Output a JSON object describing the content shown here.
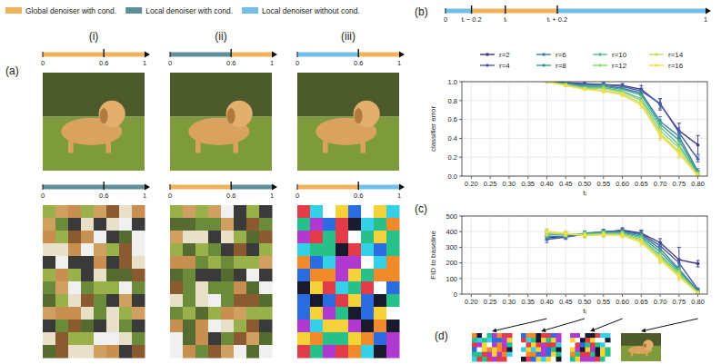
{
  "legend_items": [
    {
      "label": "Global denoiser with cond.",
      "color": "#f2b25c"
    },
    {
      "label": "Local denoiser with cond.",
      "color": "#5f8f98"
    },
    {
      "label": "Local denoiser without cond.",
      "color": "#72bdea"
    }
  ],
  "panel_a": {
    "label": "(a)",
    "timeline_ticks": [
      {
        "value": 0,
        "label": "0"
      },
      {
        "value": 0.6,
        "label": "0.6"
      },
      {
        "value": 1,
        "label": "1"
      }
    ],
    "columns": [
      {
        "label": "(i)",
        "timelines": [
          [
            {
              "start": 0,
              "end": 1,
              "color": "#f2b25c"
            }
          ],
          [
            {
              "start": 0,
              "end": 1,
              "color": "#5f8f98"
            }
          ]
        ]
      },
      {
        "label": "(ii)",
        "timelines": [
          [
            {
              "start": 0,
              "end": 0.6,
              "color": "#5f8f98"
            },
            {
              "start": 0.6,
              "end": 1,
              "color": "#f2b25c"
            }
          ],
          [
            {
              "start": 0,
              "end": 0.6,
              "color": "#f2b25c"
            },
            {
              "start": 0.6,
              "end": 1,
              "color": "#5f8f98"
            }
          ]
        ]
      },
      {
        "label": "(iii)",
        "timelines": [
          [
            {
              "start": 0,
              "end": 0.6,
              "color": "#72bdea"
            },
            {
              "start": 0.6,
              "end": 1,
              "color": "#f2b25c"
            }
          ],
          [
            {
              "start": 0,
              "end": 0.6,
              "color": "#f2b25c"
            },
            {
              "start": 0.6,
              "end": 1,
              "color": "#72bdea"
            }
          ]
        ]
      }
    ]
  },
  "panel_b": {
    "label": "(b)",
    "timeline_ticks": [
      {
        "value": 0,
        "label": "0"
      },
      {
        "value": 0.1,
        "label": "tᵢ − 0.2"
      },
      {
        "value": 0.23,
        "label": "tᵢ"
      },
      {
        "value": 0.43,
        "label": "tᵢ + 0.2"
      },
      {
        "value": 1,
        "label": "1"
      }
    ],
    "segments": [
      {
        "start": 0,
        "end": 0.1,
        "color": "#72bdea"
      },
      {
        "start": 0.1,
        "end": 0.43,
        "color": "#f2b25c"
      },
      {
        "start": 0.43,
        "end": 1,
        "color": "#72bdea"
      }
    ]
  },
  "panel_c": {
    "label": "(c)"
  },
  "panel_d": {
    "label": "(d)",
    "arrow_t": [
      0.4,
      0.5,
      0.6,
      0.8
    ]
  },
  "chart_data": [
    {
      "type": "line",
      "x_label": "tᵢ",
      "y_label": "classifier error",
      "xlim": [
        0.175,
        0.825
      ],
      "ylim": [
        0,
        1
      ],
      "xticks": [
        {
          "value": 0.2,
          "label": "0.20"
        },
        {
          "value": 0.25,
          "label": "0.25"
        },
        {
          "value": 0.3,
          "label": "0.30"
        },
        {
          "value": 0.35,
          "label": "0.35"
        },
        {
          "value": 0.4,
          "label": "0.40"
        },
        {
          "value": 0.45,
          "label": "0.45"
        },
        {
          "value": 0.5,
          "label": "0.50"
        },
        {
          "value": 0.55,
          "label": "0.55"
        },
        {
          "value": 0.6,
          "label": "0.60"
        },
        {
          "value": 0.65,
          "label": "0.65"
        },
        {
          "value": 0.7,
          "label": "0.70"
        },
        {
          "value": 0.75,
          "label": "0.75"
        },
        {
          "value": 0.8,
          "label": "0.80"
        }
      ],
      "yticks": [
        {
          "value": 0,
          "label": "0.0"
        },
        {
          "value": 0.2,
          "label": "0.2"
        },
        {
          "value": 0.4,
          "label": "0.4"
        },
        {
          "value": 0.6,
          "label": "0.6"
        },
        {
          "value": 0.8,
          "label": "0.8"
        },
        {
          "value": 1,
          "label": "1.0"
        }
      ],
      "grid": true,
      "legend": "top",
      "marker": "circle",
      "x": [
        0.4,
        0.45,
        0.5,
        0.55,
        0.6,
        0.65,
        0.7,
        0.75,
        0.8
      ],
      "series": [
        {
          "name": "r=2",
          "color": "#3b3683",
          "values": [
            1.0,
            0.99,
            0.98,
            0.97,
            0.96,
            0.92,
            0.76,
            0.48,
            0.33
          ],
          "errors": [
            0,
            0.01,
            0.01,
            0.02,
            0.02,
            0.04,
            0.06,
            0.08,
            0.1
          ]
        },
        {
          "name": "r=4",
          "color": "#4a58a8",
          "values": [
            1.0,
            0.99,
            0.97,
            0.97,
            0.95,
            0.9,
            0.77,
            0.46,
            0.18
          ],
          "errors": [
            0,
            0.01,
            0.01,
            0.02,
            0.02,
            0.03,
            0.05,
            0.05,
            0.03
          ]
        },
        {
          "name": "r=6",
          "color": "#3d7ea6",
          "values": [
            1.0,
            0.98,
            0.96,
            0.96,
            0.93,
            0.88,
            0.58,
            0.42,
            0.05
          ],
          "errors": [
            0,
            0.01,
            0.01,
            0.02,
            0.02,
            0.03,
            0.05,
            0.05,
            0.03
          ]
        },
        {
          "name": "r=8",
          "color": "#3c9c8c",
          "values": [
            1.0,
            0.98,
            0.95,
            0.95,
            0.92,
            0.86,
            0.55,
            0.38,
            0.03
          ],
          "errors": [
            0,
            0.01,
            0.01,
            0.02,
            0.02,
            0.03,
            0.05,
            0.05,
            0.03
          ]
        },
        {
          "name": "r=10",
          "color": "#5cbf8a",
          "values": [
            1.0,
            0.97,
            0.94,
            0.94,
            0.9,
            0.82,
            0.52,
            0.33,
            0.02
          ],
          "errors": [
            0,
            0.01,
            0.01,
            0.02,
            0.02,
            0.03,
            0.05,
            0.05,
            0.03
          ]
        },
        {
          "name": "r=12",
          "color": "#8fd47a",
          "values": [
            1.0,
            0.97,
            0.93,
            0.93,
            0.89,
            0.8,
            0.48,
            0.3,
            0.01
          ],
          "errors": [
            0,
            0.01,
            0.01,
            0.02,
            0.02,
            0.03,
            0.05,
            0.05,
            0.03
          ]
        },
        {
          "name": "r=14",
          "color": "#c3dc5e",
          "values": [
            1.0,
            0.96,
            0.92,
            0.91,
            0.87,
            0.77,
            0.45,
            0.26,
            0.0
          ],
          "errors": [
            0,
            0.01,
            0.01,
            0.02,
            0.02,
            0.03,
            0.05,
            0.05,
            0.03
          ]
        },
        {
          "name": "r=16",
          "color": "#f0e04a",
          "values": [
            1.0,
            0.96,
            0.92,
            0.9,
            0.86,
            0.75,
            0.43,
            0.24,
            0.0
          ],
          "errors": [
            0,
            0.01,
            0.01,
            0.02,
            0.02,
            0.03,
            0.05,
            0.05,
            0.03
          ]
        }
      ]
    },
    {
      "type": "line",
      "x_label": "tᵢ",
      "y_label": "FID to baseline",
      "xlim": [
        0.175,
        0.825
      ],
      "ylim": [
        0,
        500
      ],
      "xticks": [
        {
          "value": 0.2,
          "label": "0.20"
        },
        {
          "value": 0.25,
          "label": "0.25"
        },
        {
          "value": 0.3,
          "label": "0.30"
        },
        {
          "value": 0.35,
          "label": "0.35"
        },
        {
          "value": 0.4,
          "label": "0.40"
        },
        {
          "value": 0.45,
          "label": "0.45"
        },
        {
          "value": 0.5,
          "label": "0.50"
        },
        {
          "value": 0.55,
          "label": "0.55"
        },
        {
          "value": 0.6,
          "label": "0.60"
        },
        {
          "value": 0.65,
          "label": "0.65"
        },
        {
          "value": 0.7,
          "label": "0.70"
        },
        {
          "value": 0.75,
          "label": "0.75"
        },
        {
          "value": 0.8,
          "label": "0.80"
        }
      ],
      "yticks": [
        0,
        100,
        200,
        300,
        400,
        500
      ],
      "grid": true,
      "marker": "circle",
      "x": [
        0.4,
        0.45,
        0.5,
        0.55,
        0.6,
        0.65,
        0.7,
        0.75,
        0.8
      ],
      "series": [
        {
          "name": "r=2",
          "color": "#3b3683",
          "values": [
            360,
            370,
            380,
            395,
            410,
            390,
            330,
            220,
            195
          ],
          "errors": [
            15,
            15,
            15,
            15,
            15,
            20,
            25,
            80,
            20
          ]
        },
        {
          "name": "r=4",
          "color": "#4a58a8",
          "values": [
            350,
            365,
            385,
            400,
            405,
            385,
            310,
            200,
            30
          ],
          "errors": [
            20,
            15,
            15,
            15,
            15,
            20,
            25,
            25,
            10
          ]
        },
        {
          "name": "r=6",
          "color": "#3d7ea6",
          "values": [
            370,
            370,
            390,
            400,
            400,
            380,
            290,
            160,
            20
          ],
          "errors": [
            20,
            15,
            15,
            15,
            15,
            20,
            25,
            25,
            10
          ]
        },
        {
          "name": "r=8",
          "color": "#3c9c8c",
          "values": [
            380,
            380,
            385,
            395,
            395,
            370,
            270,
            150,
            15
          ],
          "errors": [
            20,
            15,
            15,
            15,
            15,
            20,
            25,
            25,
            10
          ]
        },
        {
          "name": "r=10",
          "color": "#5cbf8a",
          "values": [
            385,
            380,
            385,
            390,
            390,
            360,
            250,
            140,
            10
          ],
          "errors": [
            20,
            15,
            15,
            15,
            15,
            20,
            25,
            25,
            10
          ]
        },
        {
          "name": "r=12",
          "color": "#8fd47a",
          "values": [
            390,
            385,
            380,
            385,
            385,
            350,
            240,
            130,
            8
          ],
          "errors": [
            20,
            15,
            15,
            15,
            15,
            20,
            25,
            25,
            10
          ]
        },
        {
          "name": "r=14",
          "color": "#c3dc5e",
          "values": [
            395,
            385,
            375,
            380,
            380,
            340,
            230,
            120,
            5
          ],
          "errors": [
            20,
            15,
            15,
            15,
            15,
            20,
            25,
            25,
            10
          ]
        },
        {
          "name": "r=16",
          "color": "#f0e04a",
          "values": [
            400,
            390,
            375,
            380,
            375,
            330,
            220,
            110,
            5
          ],
          "errors": [
            20,
            15,
            15,
            15,
            15,
            20,
            25,
            25,
            10
          ]
        }
      ]
    }
  ]
}
